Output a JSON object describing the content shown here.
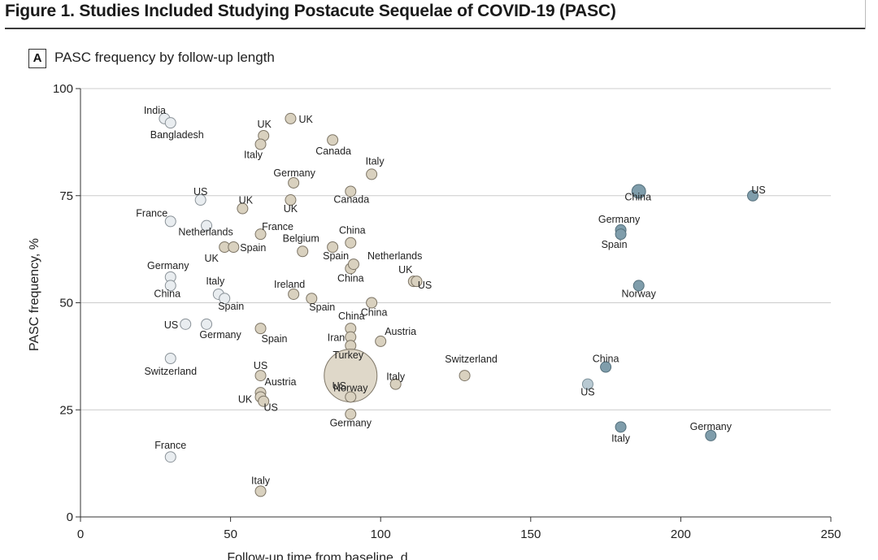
{
  "figure": {
    "title": "Figure 1. Studies Included Studying Postacute Sequelae of COVID-19 (PASC)",
    "panel_letter": "A",
    "panel_title": "PASC frequency by follow-up length"
  },
  "colors": {
    "light": "#e9edf0",
    "beige": "#d9d1bf",
    "teal": "#7f9dab",
    "outline": "#666666",
    "grid": "#cccccc"
  },
  "chart_data": {
    "type": "scatter",
    "title": "PASC frequency by follow-up length",
    "xlabel": "Follow-up time from baseline, d",
    "ylabel": "PASC frequency, %",
    "xlim": [
      0,
      250
    ],
    "ylim": [
      0,
      100
    ],
    "xticks": [
      "0",
      "50",
      "100",
      "150",
      "200",
      "250"
    ],
    "yticks": [
      "0",
      "25",
      "50",
      "75",
      "100"
    ],
    "grid": "horizontal",
    "points": [
      {
        "country": "India",
        "x": 28,
        "y": 93,
        "group": "light",
        "size": 1
      },
      {
        "country": "Bangladesh",
        "x": 30,
        "y": 92,
        "group": "light",
        "size": 1
      },
      {
        "country": "US",
        "x": 40,
        "y": 74,
        "group": "light",
        "size": 1
      },
      {
        "country": "France",
        "x": 30,
        "y": 69,
        "group": "light",
        "size": 1
      },
      {
        "country": "Netherlands",
        "x": 42,
        "y": 68,
        "group": "light",
        "size": 1
      },
      {
        "country": "Germany",
        "x": 30,
        "y": 56,
        "group": "light",
        "size": 1
      },
      {
        "country": "China",
        "x": 30,
        "y": 54,
        "group": "light",
        "size": 1
      },
      {
        "country": "Italy",
        "x": 46,
        "y": 52,
        "group": "light",
        "size": 1
      },
      {
        "country": "Spain",
        "x": 48,
        "y": 51,
        "group": "light",
        "size": 1
      },
      {
        "country": "US",
        "x": 35,
        "y": 45,
        "group": "light",
        "size": 1
      },
      {
        "country": "Germany",
        "x": 42,
        "y": 45,
        "group": "light",
        "size": 1
      },
      {
        "country": "Switzerland",
        "x": 30,
        "y": 37,
        "group": "light",
        "size": 1
      },
      {
        "country": "France",
        "x": 30,
        "y": 14,
        "group": "light",
        "size": 1
      },
      {
        "country": "UK",
        "x": 61,
        "y": 89,
        "group": "beige",
        "size": 1
      },
      {
        "country": "Italy",
        "x": 60,
        "y": 87,
        "group": "beige",
        "size": 1
      },
      {
        "country": "UK",
        "x": 70,
        "y": 93,
        "group": "beige",
        "size": 1
      },
      {
        "country": "Canada",
        "x": 84,
        "y": 88,
        "group": "beige",
        "size": 1
      },
      {
        "country": "Germany",
        "x": 71,
        "y": 78,
        "group": "beige",
        "size": 1
      },
      {
        "country": "Italy",
        "x": 97,
        "y": 80,
        "group": "beige",
        "size": 1
      },
      {
        "country": "UK",
        "x": 54,
        "y": 72,
        "group": "beige",
        "size": 1
      },
      {
        "country": "UK",
        "x": 70,
        "y": 74,
        "group": "beige",
        "size": 1
      },
      {
        "country": "Canada",
        "x": 90,
        "y": 76,
        "group": "beige",
        "size": 1
      },
      {
        "country": "France",
        "x": 60,
        "y": 66,
        "group": "beige",
        "size": 1
      },
      {
        "country": "UK",
        "x": 48,
        "y": 63,
        "group": "beige",
        "size": 1
      },
      {
        "country": "Spain",
        "x": 51,
        "y": 63,
        "group": "beige",
        "size": 1
      },
      {
        "country": "Belgium",
        "x": 74,
        "y": 62,
        "group": "beige",
        "size": 1
      },
      {
        "country": "Spain",
        "x": 84,
        "y": 63,
        "group": "beige",
        "size": 1
      },
      {
        "country": "China",
        "x": 90,
        "y": 64,
        "group": "beige",
        "size": 1
      },
      {
        "country": "China",
        "x": 90,
        "y": 58,
        "group": "beige",
        "size": 1
      },
      {
        "country": "Netherlands",
        "x": 91,
        "y": 59,
        "group": "beige",
        "size": 1
      },
      {
        "country": "UK",
        "x": 111,
        "y": 55,
        "group": "beige",
        "size": 1
      },
      {
        "country": "US",
        "x": 112,
        "y": 55,
        "group": "beige",
        "size": 1
      },
      {
        "country": "Ireland",
        "x": 71,
        "y": 52,
        "group": "beige",
        "size": 1
      },
      {
        "country": "Spain",
        "x": 77,
        "y": 51,
        "group": "beige",
        "size": 1
      },
      {
        "country": "China",
        "x": 97,
        "y": 50,
        "group": "beige",
        "size": 1
      },
      {
        "country": "China",
        "x": 90,
        "y": 44,
        "group": "beige",
        "size": 1
      },
      {
        "country": "Iran",
        "x": 90,
        "y": 42,
        "group": "beige",
        "size": 1
      },
      {
        "country": "Turkey",
        "x": 90,
        "y": 40,
        "group": "beige",
        "size": 1
      },
      {
        "country": "Austria",
        "x": 100,
        "y": 41,
        "group": "beige",
        "size": 1
      },
      {
        "country": "Spain",
        "x": 60,
        "y": 44,
        "group": "beige",
        "size": 1
      },
      {
        "country": "US",
        "x": 60,
        "y": 33,
        "group": "beige",
        "size": 1
      },
      {
        "country": "Austria",
        "x": 60,
        "y": 29,
        "group": "beige",
        "size": 1
      },
      {
        "country": "UK",
        "x": 60,
        "y": 28,
        "group": "beige",
        "size": 1
      },
      {
        "country": "US",
        "x": 61,
        "y": 27,
        "group": "beige",
        "size": 1
      },
      {
        "country": "US",
        "x": 90,
        "y": 33,
        "group": "beige",
        "size": 5
      },
      {
        "country": "Norway",
        "x": 90,
        "y": 28,
        "group": "beige",
        "size": 1
      },
      {
        "country": "Germany",
        "x": 90,
        "y": 24,
        "group": "beige",
        "size": 1
      },
      {
        "country": "Italy",
        "x": 105,
        "y": 31,
        "group": "beige",
        "size": 1
      },
      {
        "country": "Switzerland",
        "x": 128,
        "y": 33,
        "group": "beige",
        "size": 1
      },
      {
        "country": "Italy",
        "x": 60,
        "y": 6,
        "group": "beige",
        "size": 1
      },
      {
        "country": "China",
        "x": 186,
        "y": 76,
        "group": "teal",
        "size": 1.3
      },
      {
        "country": "US",
        "x": 224,
        "y": 75,
        "group": "teal",
        "size": 1
      },
      {
        "country": "Germany",
        "x": 180,
        "y": 67,
        "group": "teal",
        "size": 1
      },
      {
        "country": "Spain",
        "x": 180,
        "y": 66,
        "group": "teal",
        "size": 1
      },
      {
        "country": "Norway",
        "x": 186,
        "y": 54,
        "group": "teal",
        "size": 1
      },
      {
        "country": "China",
        "x": 175,
        "y": 35,
        "group": "teal",
        "size": 1
      },
      {
        "country": "US",
        "x": 169,
        "y": 31,
        "group": "lightteal",
        "size": 1
      },
      {
        "country": "Italy",
        "x": 180,
        "y": 21,
        "group": "teal",
        "size": 1
      },
      {
        "country": "Germany",
        "x": 210,
        "y": 19,
        "group": "teal",
        "size": 1
      }
    ]
  }
}
